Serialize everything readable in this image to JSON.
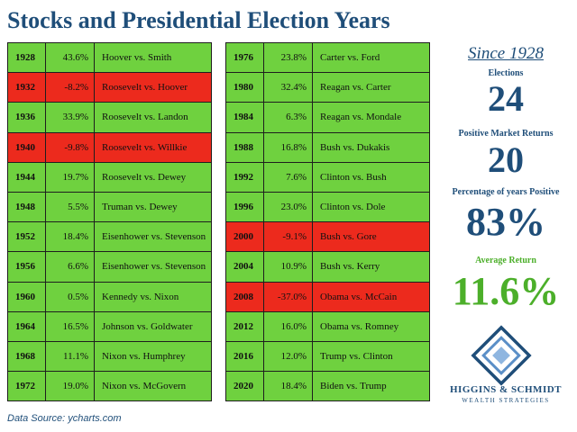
{
  "title": "Stocks and Presidential Election Years",
  "colors": {
    "positive": "#6fd13f",
    "negative": "#ec2a1d",
    "navy": "#1f4e79",
    "green": "#4caf2a"
  },
  "left_table": [
    {
      "year": "1928",
      "return": "43.6%",
      "matchup": "Hoover vs. Smith",
      "status": "pos"
    },
    {
      "year": "1932",
      "return": "-8.2%",
      "matchup": "Roosevelt vs. Hoover",
      "status": "neg"
    },
    {
      "year": "1936",
      "return": "33.9%",
      "matchup": "Roosevelt vs. Landon",
      "status": "pos"
    },
    {
      "year": "1940",
      "return": "-9.8%",
      "matchup": "Roosevelt vs. Willkie",
      "status": "neg"
    },
    {
      "year": "1944",
      "return": "19.7%",
      "matchup": "Roosevelt vs. Dewey",
      "status": "pos"
    },
    {
      "year": "1948",
      "return": "5.5%",
      "matchup": "Truman vs. Dewey",
      "status": "pos"
    },
    {
      "year": "1952",
      "return": "18.4%",
      "matchup": "Eisenhower vs. Stevenson",
      "status": "pos"
    },
    {
      "year": "1956",
      "return": "6.6%",
      "matchup": "Eisenhower vs. Stevenson",
      "status": "pos"
    },
    {
      "year": "1960",
      "return": "0.5%",
      "matchup": "Kennedy vs. Nixon",
      "status": "pos"
    },
    {
      "year": "1964",
      "return": "16.5%",
      "matchup": "Johnson vs. Goldwater",
      "status": "pos"
    },
    {
      "year": "1968",
      "return": "11.1%",
      "matchup": "Nixon vs. Humphrey",
      "status": "pos"
    },
    {
      "year": "1972",
      "return": "19.0%",
      "matchup": "Nixon vs. McGovern",
      "status": "pos"
    }
  ],
  "right_table": [
    {
      "year": "1976",
      "return": "23.8%",
      "matchup": "Carter vs. Ford",
      "status": "pos"
    },
    {
      "year": "1980",
      "return": "32.4%",
      "matchup": "Reagan vs. Carter",
      "status": "pos"
    },
    {
      "year": "1984",
      "return": "6.3%",
      "matchup": "Reagan vs. Mondale",
      "status": "pos"
    },
    {
      "year": "1988",
      "return": "16.8%",
      "matchup": "Bush vs. Dukakis",
      "status": "pos"
    },
    {
      "year": "1992",
      "return": "7.6%",
      "matchup": "Clinton vs. Bush",
      "status": "pos"
    },
    {
      "year": "1996",
      "return": "23.0%",
      "matchup": "Clinton vs. Dole",
      "status": "pos"
    },
    {
      "year": "2000",
      "return": "-9.1%",
      "matchup": "Bush vs. Gore",
      "status": "neg"
    },
    {
      "year": "2004",
      "return": "10.9%",
      "matchup": "Bush vs. Kerry",
      "status": "pos"
    },
    {
      "year": "2008",
      "return": "-37.0%",
      "matchup": "Obama vs. McCain",
      "status": "neg"
    },
    {
      "year": "2012",
      "return": "16.0%",
      "matchup": "Obama vs. Romney",
      "status": "pos"
    },
    {
      "year": "2016",
      "return": "12.0%",
      "matchup": "Trump vs. Clinton",
      "status": "pos"
    },
    {
      "year": "2020",
      "return": "18.4%",
      "matchup": "Biden vs. Trump",
      "status": "pos"
    }
  ],
  "summary": {
    "since": "Since 1928",
    "elections_label": "Elections",
    "elections_value": "24",
    "positive_label": "Positive Market Returns",
    "positive_value": "20",
    "pct_label": "Percentage of years Positive",
    "pct_value": "83%",
    "avg_label": "Average Return",
    "avg_value": "11.6%"
  },
  "logo": {
    "name": "HIGGINS & SCHMIDT",
    "tagline": "WEALTH STRATEGIES"
  },
  "source": "Data Source: ycharts.com"
}
